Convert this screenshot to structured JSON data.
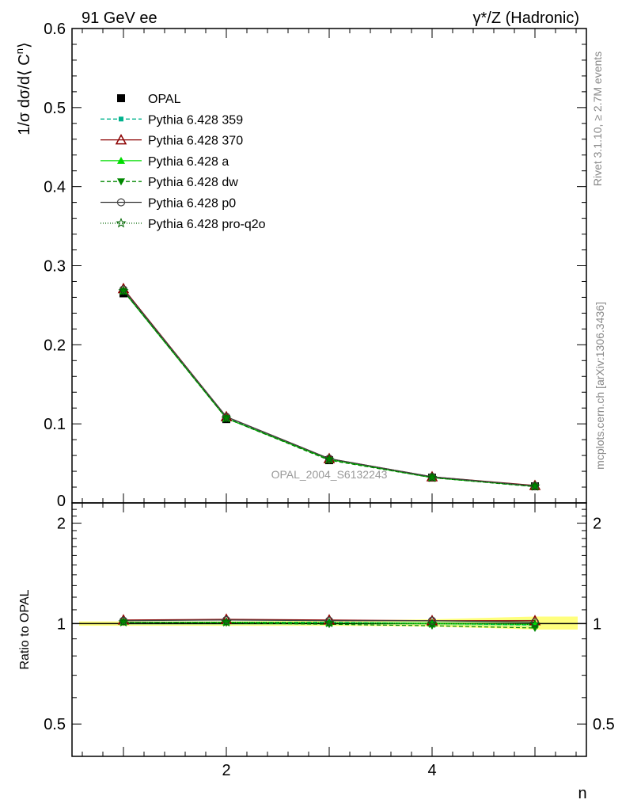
{
  "header": {
    "left_label": "91 GeV ee",
    "right_label_prefix": "γ*/Z",
    "right_label_suffix": " (Hadronic)"
  },
  "side_labels": {
    "rivet": "Rivet 3.1.10, ≥ 2.7M events",
    "mcplots": "mcplots.cern.ch [arXiv:1306.3436]"
  },
  "watermark": "OPAL_2004_S6132243",
  "colors": {
    "opal": "#000000",
    "p359": "#00b28c",
    "p370": "#8b0000",
    "pa": "#00dd00",
    "pdw": "#008800",
    "pp0": "#444444",
    "pq2o": "#006600",
    "band_yellow": "#ffff66",
    "band_green": "#99ee99"
  },
  "chart_data": [
    {
      "type": "line",
      "ylabel_main": "1/σ dσ/d⟨ C",
      "ylabel_sup": "n",
      "ylabel_close": "⟩",
      "xlim": [
        0.5,
        5.5
      ],
      "ylim": [
        0,
        0.6
      ],
      "yticks": [
        0.1,
        0.2,
        0.3,
        0.4,
        0.5,
        0.6
      ],
      "ytick_labels": [
        "0.1",
        "0.2",
        "0.3",
        "0.4",
        "0.5",
        "0.6"
      ],
      "ytick_zero_label": "0",
      "x": [
        1,
        2,
        3,
        4,
        5
      ],
      "series": [
        {
          "name": "OPAL",
          "values": [
            0.265,
            0.106,
            0.054,
            0.032,
            0.021
          ]
        },
        {
          "name": "Pythia 6.428 359",
          "values": [
            0.269,
            0.108,
            0.055,
            0.033,
            0.021
          ]
        },
        {
          "name": "Pythia 6.428 370",
          "values": [
            0.271,
            0.109,
            0.056,
            0.033,
            0.022
          ]
        },
        {
          "name": "Pythia 6.428 a",
          "values": [
            0.268,
            0.107,
            0.055,
            0.032,
            0.021
          ]
        },
        {
          "name": "Pythia 6.428 dw",
          "values": [
            0.268,
            0.107,
            0.054,
            0.032,
            0.0205
          ]
        },
        {
          "name": "Pythia 6.428 p0",
          "values": [
            0.27,
            0.109,
            0.056,
            0.033,
            0.0215
          ]
        },
        {
          "name": "Pythia 6.428 pro-q2o",
          "values": [
            0.268,
            0.107,
            0.055,
            0.032,
            0.021
          ]
        }
      ]
    },
    {
      "type": "line",
      "ylabel": "Ratio to OPAL",
      "xlabel": "n",
      "xlim": [
        0.5,
        5.5
      ],
      "ylim": [
        0.4,
        2.3
      ],
      "ymajor_ticks": [
        0.5,
        1,
        2
      ],
      "ytick_labels": [
        "0.5",
        "1",
        "2"
      ],
      "xticks": [
        2,
        4
      ],
      "xtick_labels": [
        "2",
        "4"
      ],
      "x": [
        1,
        2,
        3,
        4,
        5
      ],
      "band": {
        "lo": [
          0.985,
          0.985,
          0.985,
          0.98,
          0.96
        ],
        "hi": [
          1.015,
          1.015,
          1.02,
          1.03,
          1.05
        ]
      },
      "series": [
        {
          "name": "Pythia 6.428 359",
          "values": [
            1.01,
            1.01,
            1.01,
            1.0,
            0.99
          ]
        },
        {
          "name": "Pythia 6.428 370",
          "values": [
            1.025,
            1.03,
            1.025,
            1.02,
            1.02
          ]
        },
        {
          "name": "Pythia 6.428 a",
          "values": [
            1.01,
            1.01,
            1.005,
            1.0,
            0.995
          ]
        },
        {
          "name": "Pythia 6.428 dw",
          "values": [
            1.01,
            1.005,
            0.995,
            0.985,
            0.97
          ]
        },
        {
          "name": "Pythia 6.428 p0",
          "values": [
            1.02,
            1.025,
            1.02,
            1.02,
            1.01
          ]
        },
        {
          "name": "Pythia 6.428 pro-q2o",
          "values": [
            1.01,
            1.01,
            1.005,
            1.0,
            0.995
          ]
        }
      ]
    }
  ]
}
